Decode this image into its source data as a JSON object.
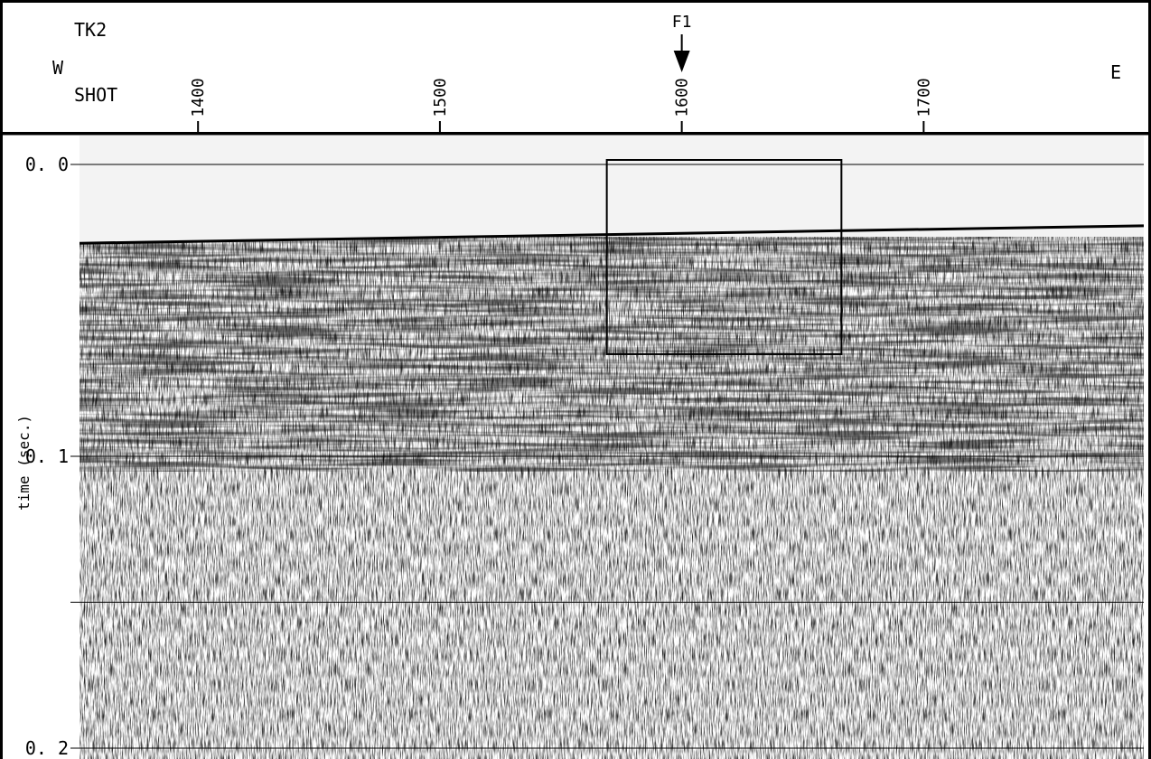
{
  "chart_data": {
    "type": "seismic-section",
    "line_name": "TK2",
    "west_label": "W",
    "east_label": "E",
    "shot_label": "SHOT",
    "x_ticks": [
      "1400",
      "1500",
      "1600",
      "1700"
    ],
    "x_tick_values": [
      1400,
      1500,
      1600,
      1700
    ],
    "xlim": [
      1351,
      1791
    ],
    "ylabel": "time (sec.)",
    "y_tick_labels": [
      "0. 0",
      "0. 1",
      "0. 2"
    ],
    "y_tick_values": [
      0.0,
      0.1,
      0.2
    ],
    "y_gridlines": [
      0.0,
      0.1,
      0.15,
      0.2
    ],
    "ylim": [
      0.0,
      0.2
    ],
    "fault_marker": {
      "label": "F1",
      "shot": 1600
    },
    "highlight_box": {
      "shot_min": 1569,
      "shot_max": 1666,
      "time_min": 0.0,
      "time_max": 0.065
    },
    "seafloor": {
      "shot_start": 1351,
      "shot_end": 1791,
      "time_start": 0.027,
      "time_end": 0.021
    }
  }
}
